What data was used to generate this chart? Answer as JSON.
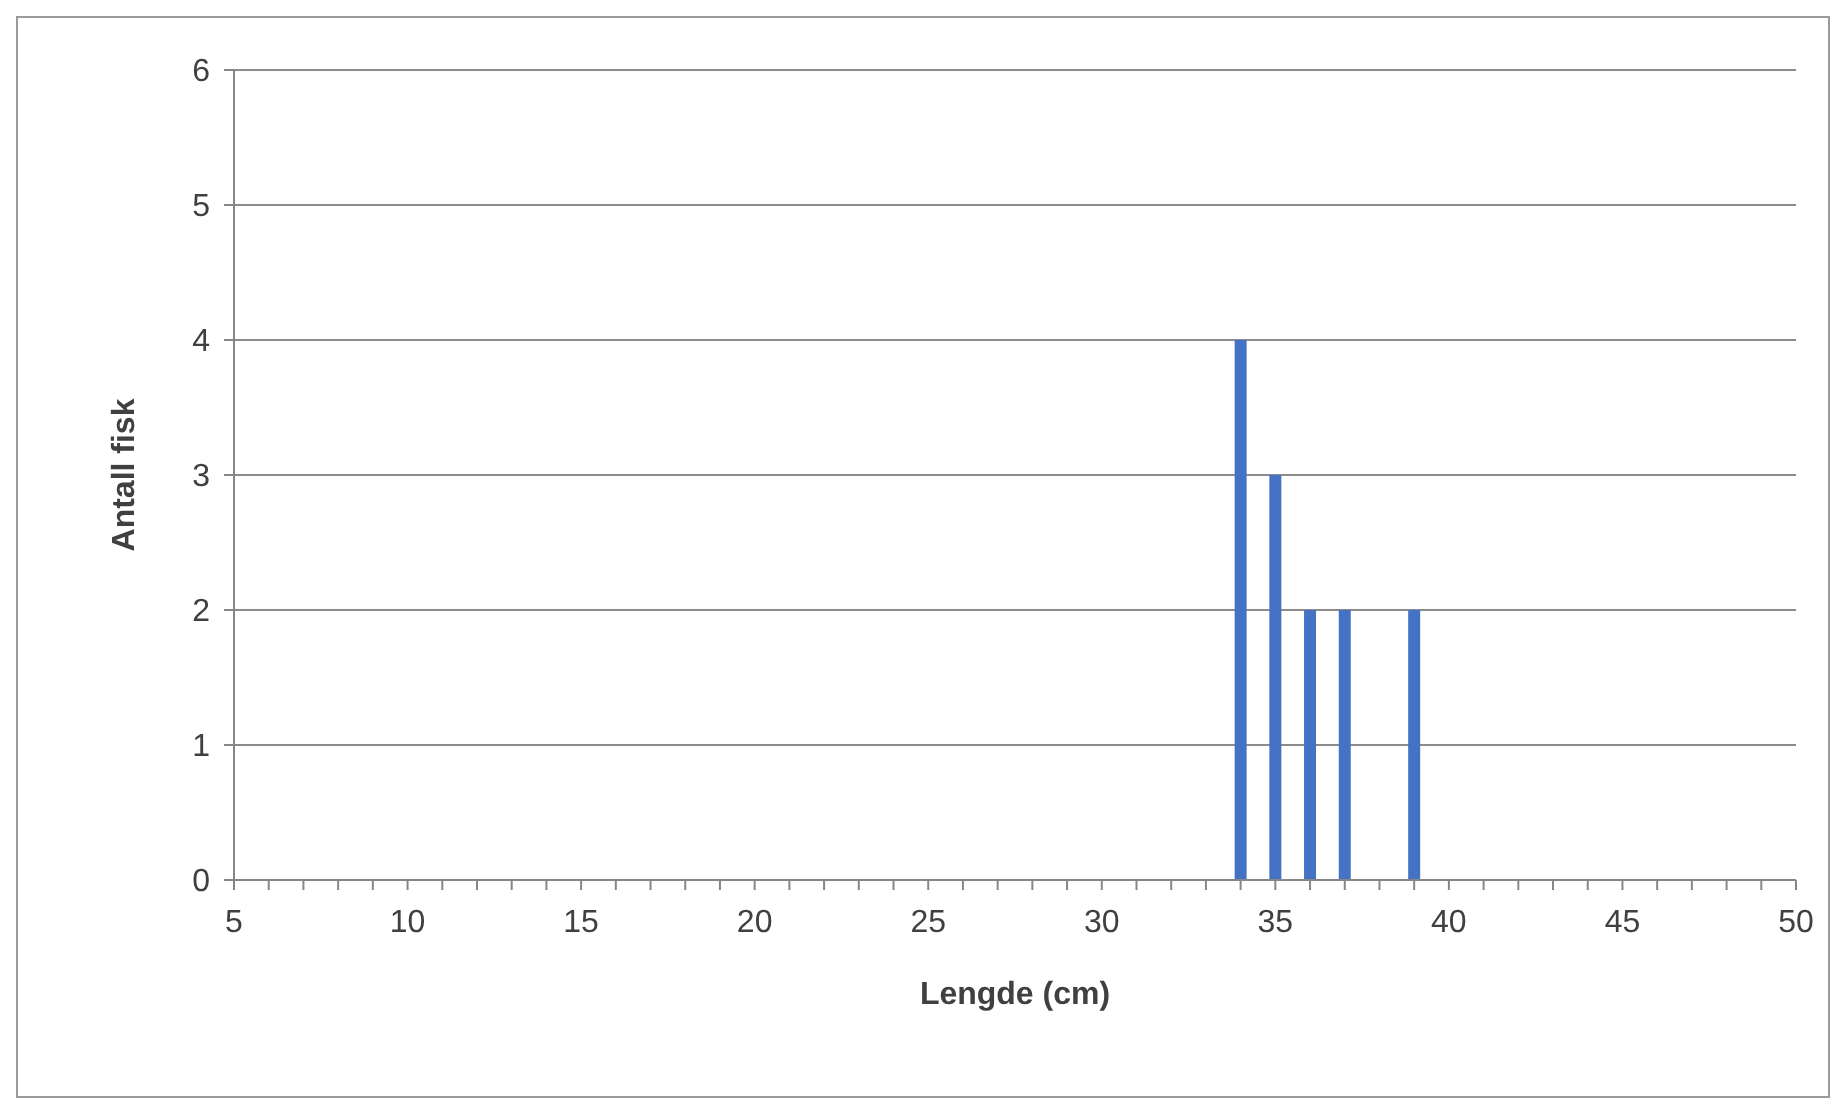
{
  "chart_data": {
    "type": "bar",
    "xlabel": "Lengde (cm)",
    "ylabel": "Antall fisk",
    "x": [
      34,
      35,
      36,
      37,
      39
    ],
    "values": [
      4,
      3,
      2,
      2,
      2
    ],
    "color": "#4472c4",
    "xlim": [
      5,
      50
    ],
    "xticks": [
      5,
      {
        "value": 6,
        "label": null
      },
      {
        "value": 7,
        "label": null
      },
      {
        "value": 8,
        "label": null
      },
      {
        "value": 9,
        "label": null
      },
      10,
      {
        "value": 11,
        "label": null
      },
      {
        "value": 12,
        "label": null
      },
      {
        "value": 13,
        "label": null
      },
      {
        "value": 14,
        "label": null
      },
      15,
      {
        "value": 16,
        "label": null
      },
      {
        "value": 17,
        "label": null
      },
      {
        "value": 18,
        "label": null
      },
      {
        "value": 19,
        "label": null
      },
      20,
      {
        "value": 21,
        "label": null
      },
      {
        "value": 22,
        "label": null
      },
      {
        "value": 23,
        "label": null
      },
      {
        "value": 24,
        "label": null
      },
      25,
      {
        "value": 26,
        "label": null
      },
      {
        "value": 27,
        "label": null
      },
      {
        "value": 28,
        "label": null
      },
      {
        "value": 29,
        "label": null
      },
      30,
      {
        "value": 31,
        "label": null
      },
      {
        "value": 32,
        "label": null
      },
      {
        "value": 33,
        "label": null
      },
      {
        "value": 34,
        "label": null
      },
      35,
      {
        "value": 36,
        "label": null
      },
      {
        "value": 37,
        "label": null
      },
      {
        "value": 38,
        "label": null
      },
      {
        "value": 39,
        "label": null
      },
      40,
      {
        "value": 41,
        "label": null
      },
      {
        "value": 42,
        "label": null
      },
      {
        "value": 43,
        "label": null
      },
      {
        "value": 44,
        "label": null
      },
      45,
      {
        "value": 46,
        "label": null
      },
      {
        "value": 47,
        "label": null
      },
      {
        "value": 48,
        "label": null
      },
      {
        "value": 49,
        "label": null
      },
      50
    ],
    "ylim": [
      0,
      6
    ],
    "yticks": [
      0,
      1,
      2,
      3,
      4,
      5,
      6
    ],
    "grid": "y"
  }
}
